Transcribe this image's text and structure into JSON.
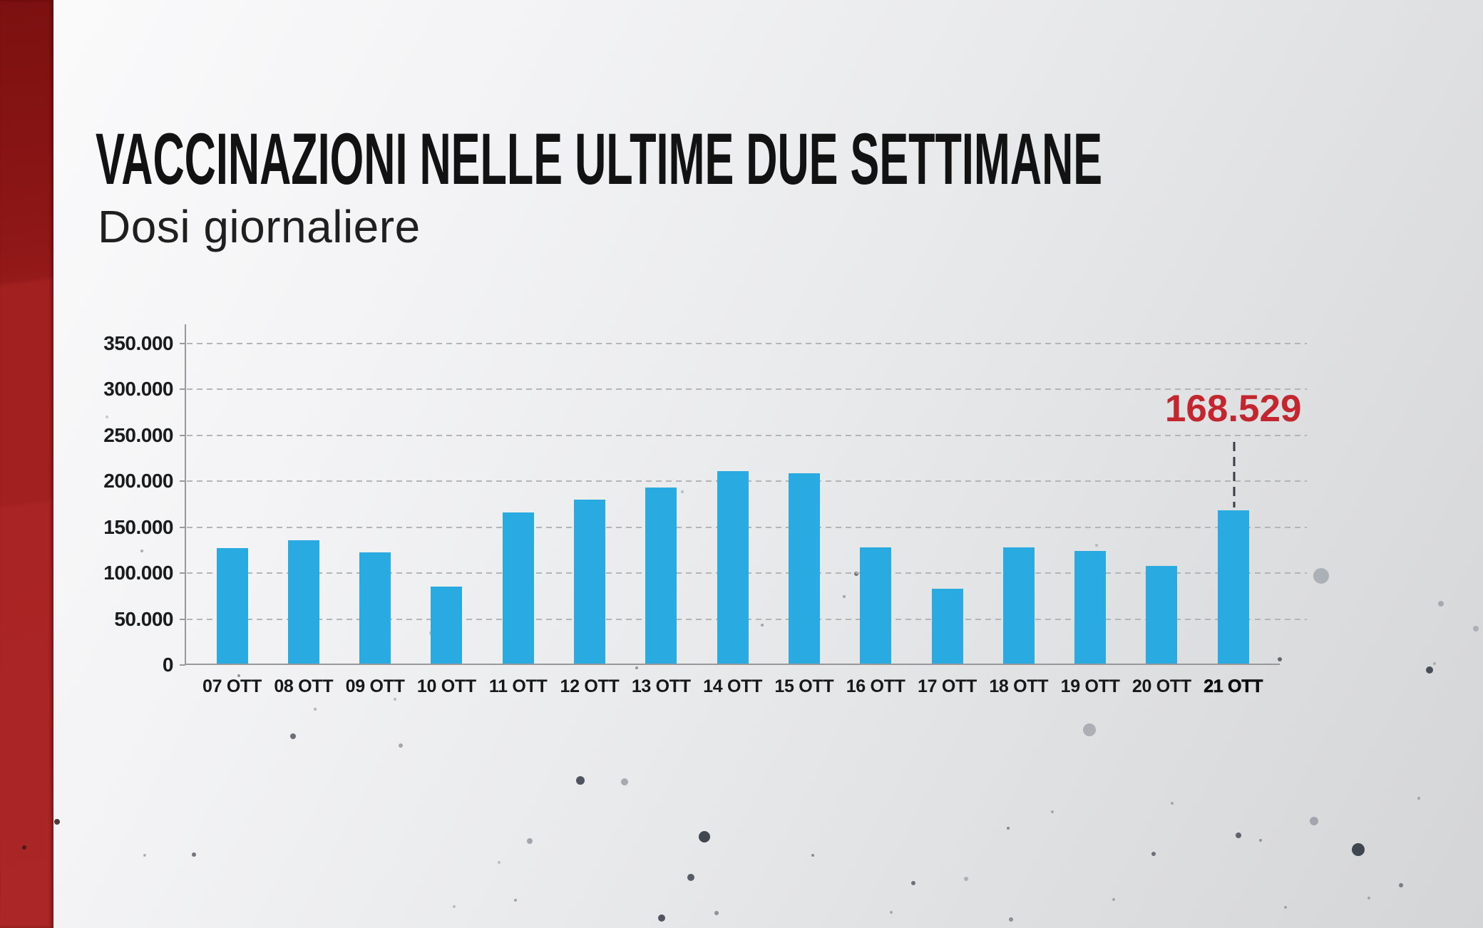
{
  "header": {
    "title": "VACCINAZIONI NELLE ULTIME DUE SETTIMANE",
    "subtitle": "Dosi giornaliere"
  },
  "colors": {
    "bar_blue": "#29aae1",
    "annotation_red": "#c2262e",
    "sidebar_red": "#9a1b1b",
    "text_dark": "#121212"
  },
  "chart_data": {
    "type": "bar",
    "title": "VACCINAZIONI NELLE ULTIME DUE SETTIMANE",
    "subtitle": "Dosi giornaliere",
    "categories": [
      "07 OTT",
      "08 OTT",
      "09 OTT",
      "10 OTT",
      "11 OTT",
      "12 OTT",
      "13 OTT",
      "14 OTT",
      "15 OTT",
      "16 OTT",
      "17 OTT",
      "18 OTT",
      "19 OTT",
      "20 OTT",
      "21 OTT"
    ],
    "values": [
      127000,
      136000,
      123000,
      85000,
      166000,
      180000,
      193000,
      211000,
      209000,
      128000,
      83000,
      128000,
      124000,
      108000,
      168529
    ],
    "ylim": [
      0,
      350000
    ],
    "y_ticks": [
      {
        "value": 350000,
        "label": "350.000"
      },
      {
        "value": 300000,
        "label": "300.000"
      },
      {
        "value": 250000,
        "label": "250.000"
      },
      {
        "value": 200000,
        "label": "200.000"
      },
      {
        "value": 150000,
        "label": "150.000"
      },
      {
        "value": 100000,
        "label": "100.000"
      },
      {
        "value": 50000,
        "label": "50.000"
      },
      {
        "value": 0,
        "label": "0"
      }
    ],
    "grid": "horizontal-dashed",
    "legend": "none",
    "bar_color": "#29aae1",
    "bold_category": "21 OTT",
    "annotation": {
      "text": "168.529",
      "value": 168529,
      "category": "21 OTT",
      "category_index": 14,
      "color": "#c2262e"
    }
  }
}
